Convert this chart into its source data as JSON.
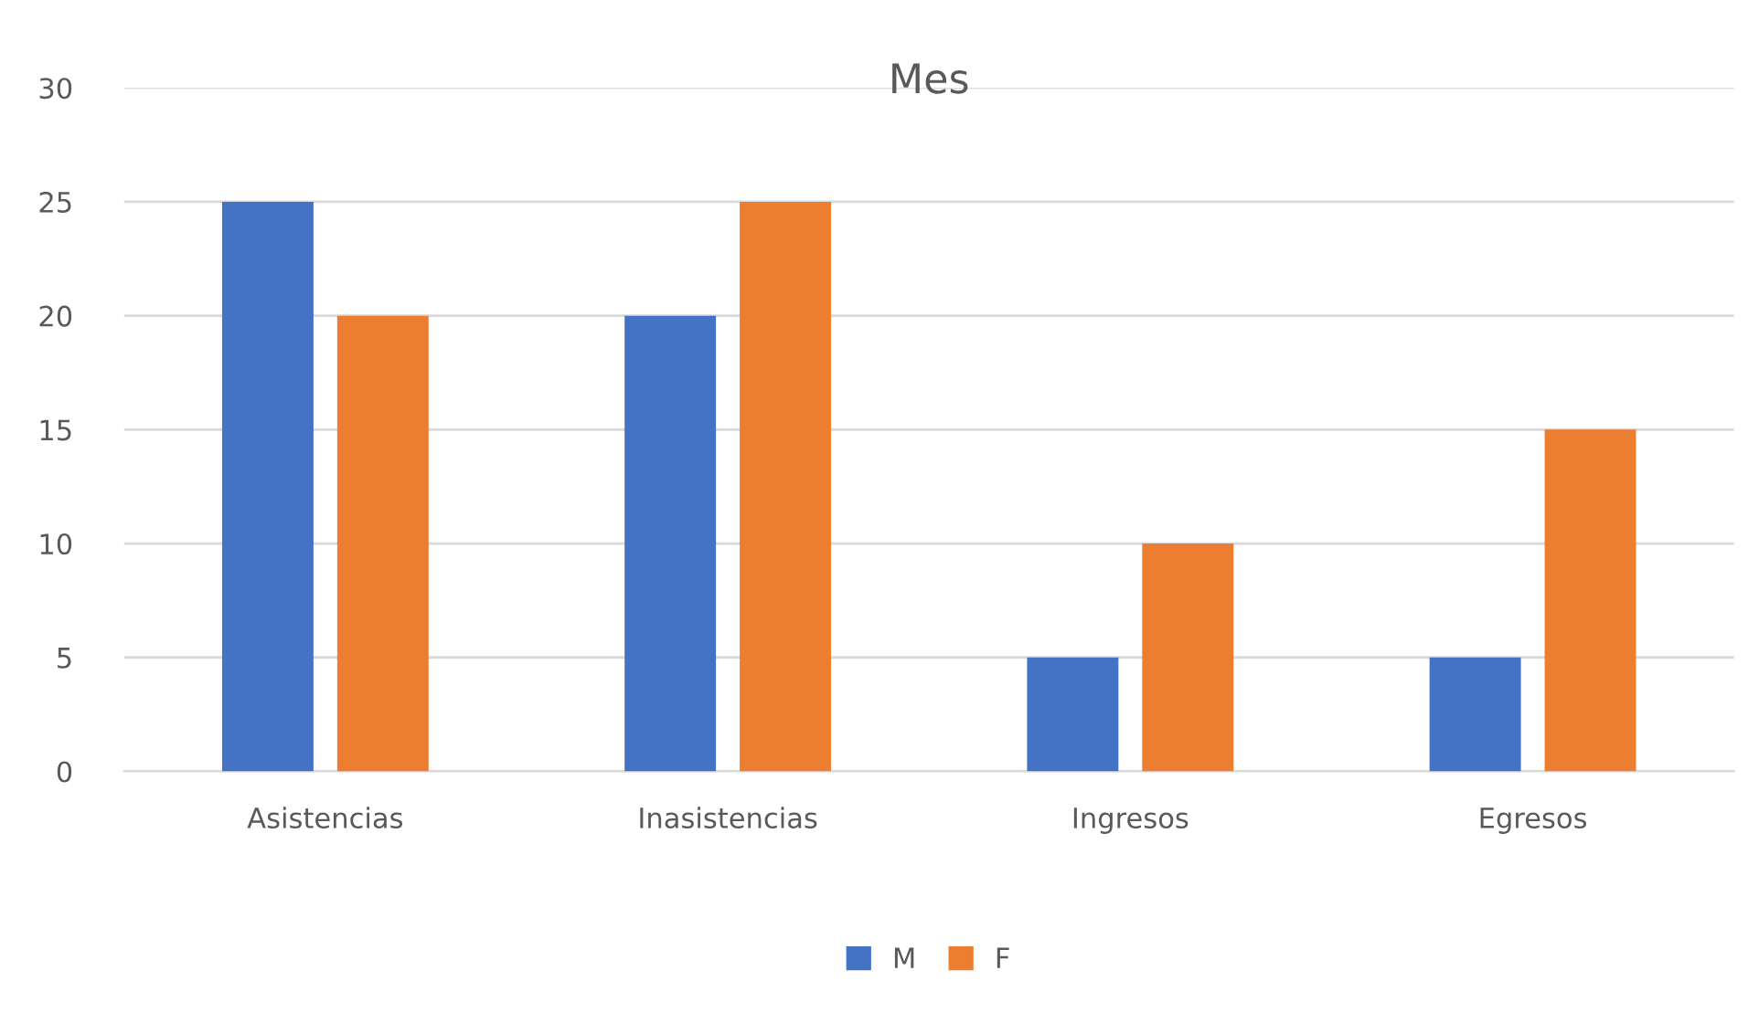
{
  "chart_data": {
    "type": "bar",
    "title": "Mes",
    "categories": [
      "Asistencias",
      "Inasistencias",
      "Ingresos",
      "Egresos"
    ],
    "series": [
      {
        "name": "M",
        "color": "#4472c4",
        "values": [
          25,
          20,
          5,
          5
        ]
      },
      {
        "name": "F",
        "color": "#ed7d31",
        "values": [
          20,
          25,
          10,
          15
        ]
      }
    ],
    "ylim": [
      0,
      30
    ],
    "yticks": [
      0,
      5,
      10,
      15,
      20,
      25,
      30
    ],
    "grid": "y",
    "legend": "bottom"
  }
}
